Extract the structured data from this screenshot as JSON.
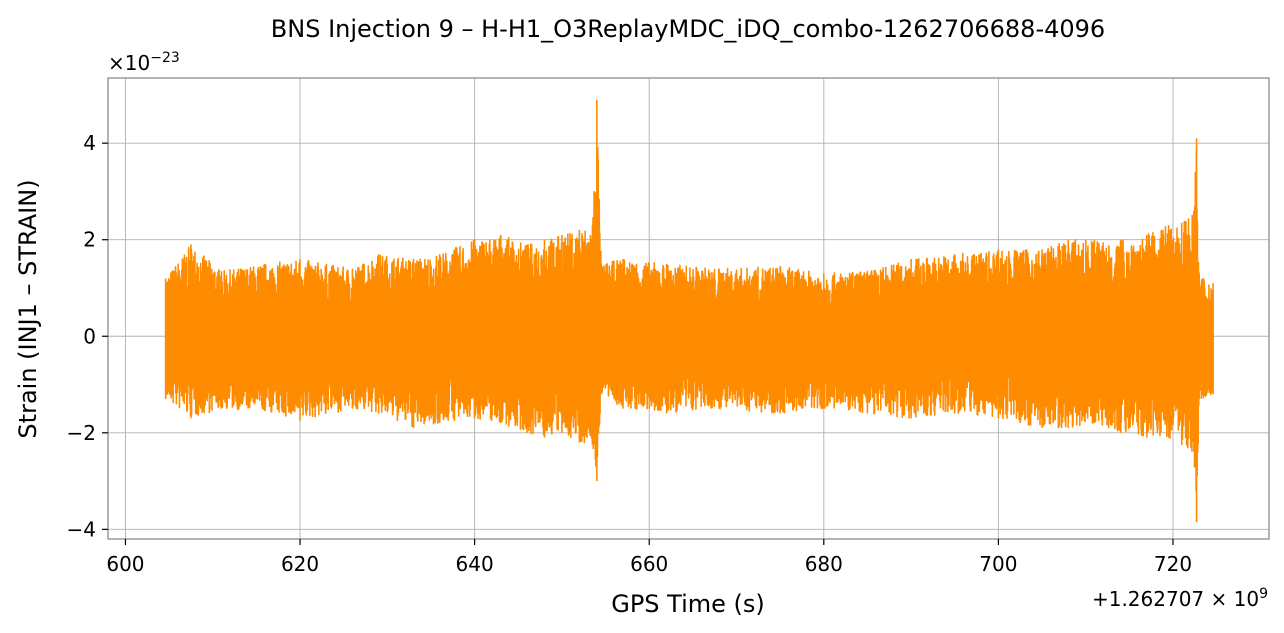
{
  "chart_data": {
    "type": "line",
    "title": "BNS Injection 9 – H-H1_O3ReplayMDC_iDQ_combo-1262706688-4096",
    "xlabel": "GPS Time (s)",
    "ylabel": "Strain (INJ1 – STRAIN)",
    "x_offset_label": "+1.262707 × 10",
    "x_offset_exponent": "9",
    "y_scale_label": "×10",
    "y_scale_exponent": "−23",
    "xlim": [
      598,
      731
    ],
    "ylim": [
      -4.2,
      5.35
    ],
    "xticks": [
      600,
      620,
      640,
      660,
      680,
      700,
      720
    ],
    "xtick_labels": [
      "600",
      "620",
      "640",
      "660",
      "680",
      "700",
      "720"
    ],
    "yticks": [
      -4,
      -2,
      0,
      2,
      4
    ],
    "ytick_labels": [
      "−4",
      "−2",
      "0",
      "2",
      "4"
    ],
    "grid": true,
    "series": [
      {
        "color": "#ff8c00",
        "x_range": [
          604.6,
          724.6
        ],
        "envelope": [
          [
            604.6,
            1.2,
            -1.3
          ],
          [
            607.5,
            1.9,
            -1.7
          ],
          [
            611,
            1.35,
            -1.5
          ],
          [
            616,
            1.5,
            -1.55
          ],
          [
            620,
            1.6,
            -1.75
          ],
          [
            626,
            1.4,
            -1.5
          ],
          [
            629,
            1.7,
            -1.6
          ],
          [
            633,
            1.6,
            -1.9
          ],
          [
            636,
            1.7,
            -1.8
          ],
          [
            640,
            2.0,
            -1.7
          ],
          [
            643,
            2.1,
            -1.8
          ],
          [
            646,
            1.9,
            -2.0
          ],
          [
            648,
            2.0,
            -2.1
          ],
          [
            650,
            2.1,
            -2.0
          ],
          [
            652,
            2.2,
            -2.2
          ],
          [
            653.5,
            2.3,
            -2.25
          ],
          [
            654.0,
            4.9,
            -3.0
          ],
          [
            654.5,
            1.5,
            -1.2
          ],
          [
            657,
            1.6,
            -1.5
          ],
          [
            662,
            1.5,
            -1.6
          ],
          [
            668,
            1.4,
            -1.5
          ],
          [
            675,
            1.45,
            -1.6
          ],
          [
            680,
            1.3,
            -1.5
          ],
          [
            685,
            1.35,
            -1.6
          ],
          [
            690,
            1.6,
            -1.7
          ],
          [
            695,
            1.7,
            -1.6
          ],
          [
            700,
            1.8,
            -1.7
          ],
          [
            705,
            1.8,
            -1.9
          ],
          [
            708,
            2.0,
            -1.9
          ],
          [
            711,
            2.0,
            -1.8
          ],
          [
            714,
            2.0,
            -2.0
          ],
          [
            717,
            2.1,
            -2.1
          ],
          [
            719.5,
            2.3,
            -2.1
          ],
          [
            721,
            2.35,
            -2.25
          ],
          [
            722.4,
            2.6,
            -2.4
          ],
          [
            722.7,
            4.1,
            -3.85
          ],
          [
            723.0,
            1.3,
            -1.3
          ],
          [
            724.6,
            1.1,
            -1.2
          ]
        ]
      }
    ]
  }
}
